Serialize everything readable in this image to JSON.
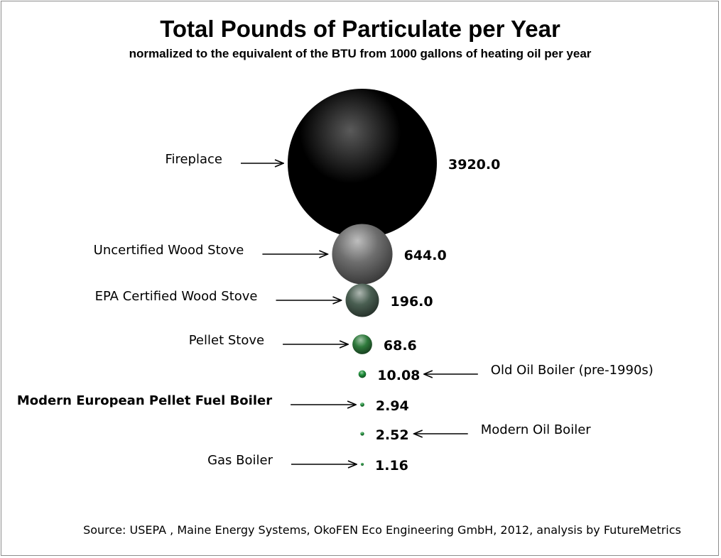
{
  "chart_data": {
    "type": "bubble",
    "title": "Total Pounds of Particulate per Year",
    "subtitle": "normalized to the equivalent of the BTU from 1000 gallons of heating oil per year",
    "source": "Source: USEPA , Maine Energy Systems, OkoFEN Eco Engineering GmbH, 2012, analysis by FutureMetrics",
    "unit": "pounds per year",
    "categories": [
      "Fireplace",
      "Uncertified Wood Stove",
      "EPA Certified Wood Stove",
      "Pellet Stove",
      "Old Oil Boiler (pre-1990s)",
      "Modern European Pellet Fuel Boiler",
      "Modern Oil Boiler",
      "Gas Boiler"
    ],
    "values": [
      3920.0,
      644.0,
      196.0,
      68.6,
      10.08,
      2.94,
      2.52,
      1.16
    ],
    "value_labels": [
      "3920.0",
      "644.0",
      "196.0",
      "68.6",
      "10.08",
      "2.94",
      "2.52",
      "1.16"
    ],
    "label_side": [
      "left",
      "left",
      "left",
      "left",
      "right",
      "left",
      "right",
      "left"
    ],
    "emphasized": [
      "Modern European Pellet Fuel Boiler"
    ],
    "bubble_colors": [
      "#000000",
      "#6e6e6e",
      "#4a5f52",
      "#2f7a3c",
      "#1f8f3a",
      "#1f8f3a",
      "#1f8f3a",
      "#1f8f3a"
    ]
  }
}
